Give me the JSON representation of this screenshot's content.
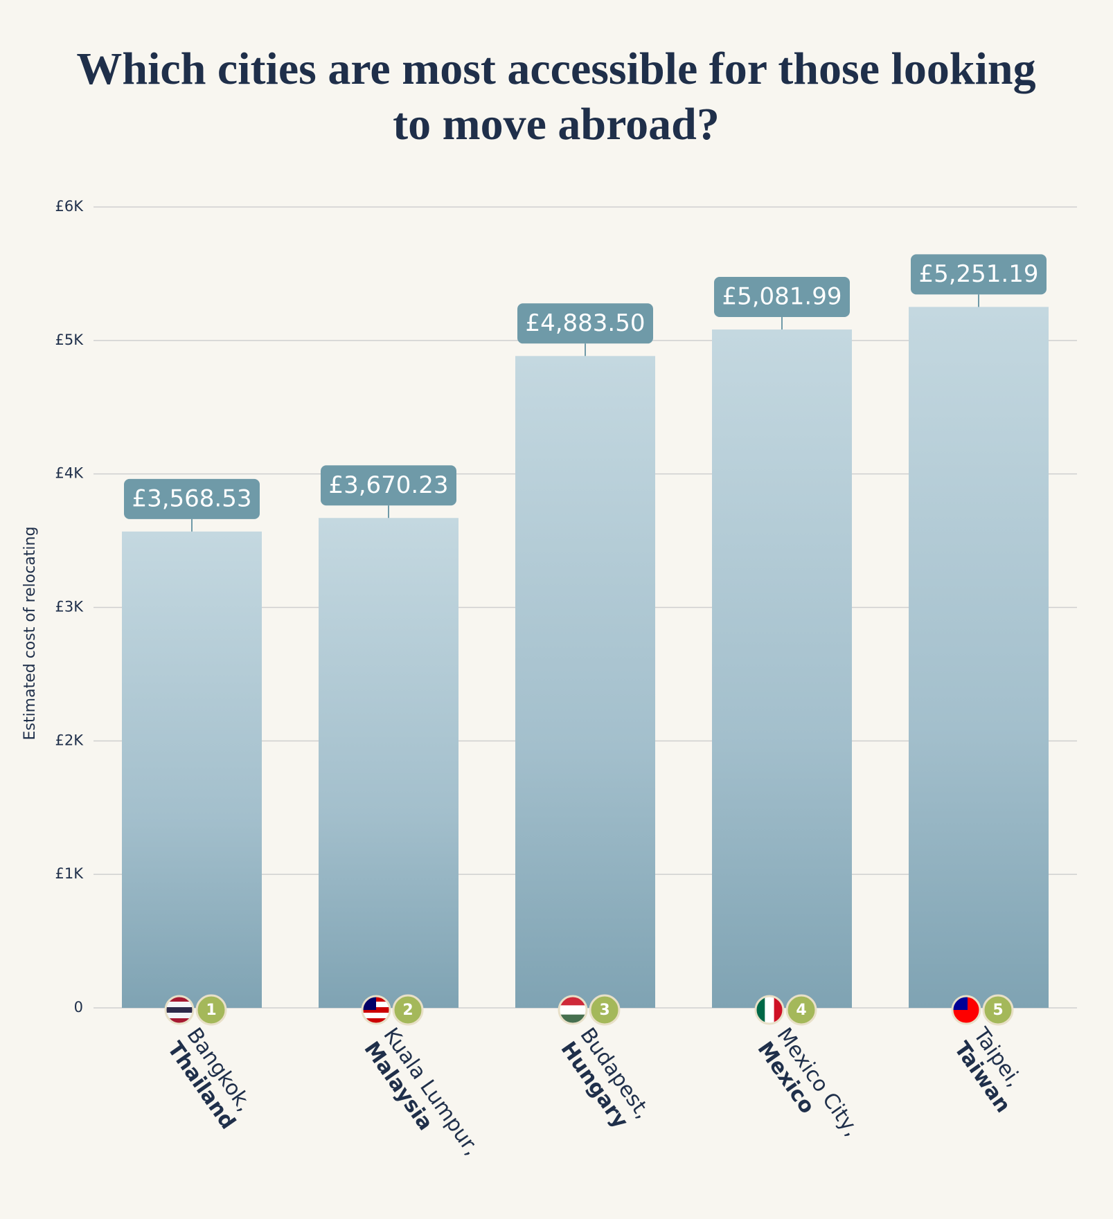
{
  "chart_data": {
    "type": "bar",
    "title": "Which cities are most accessible for those looking to move abroad?",
    "y_label": "Estimated cost of relocating",
    "categories": [
      "Bangkok,",
      "Kuala Lumpur,",
      "Budapest,",
      "Mexico City,",
      "Taipei,"
    ],
    "countries": [
      "Thailand",
      "Malaysia",
      "Hungary",
      "Mexico",
      "Taiwan"
    ],
    "ranks": [
      1,
      2,
      3,
      4,
      5
    ],
    "values": [
      3568.53,
      3670.23,
      4883.5,
      5081.99,
      5251.19
    ],
    "value_labels": [
      "£3,568.53",
      "£3,670.23",
      "£4,883.50",
      "£5,081.99",
      "£5,251.19"
    ],
    "color": "#a9c4d0",
    "ylim": [
      0,
      6000
    ],
    "yticks": [
      0,
      {
        "value": 1000,
        "label": "£1K"
      },
      {
        "value": 2000,
        "label": "£2K"
      },
      {
        "value": 3000,
        "label": "£3K"
      },
      {
        "value": 4000,
        "label": "£4K"
      },
      {
        "value": 5000,
        "label": "£5K"
      },
      {
        "value": 6000,
        "label": "£6K"
      }
    ],
    "grid": true
  }
}
